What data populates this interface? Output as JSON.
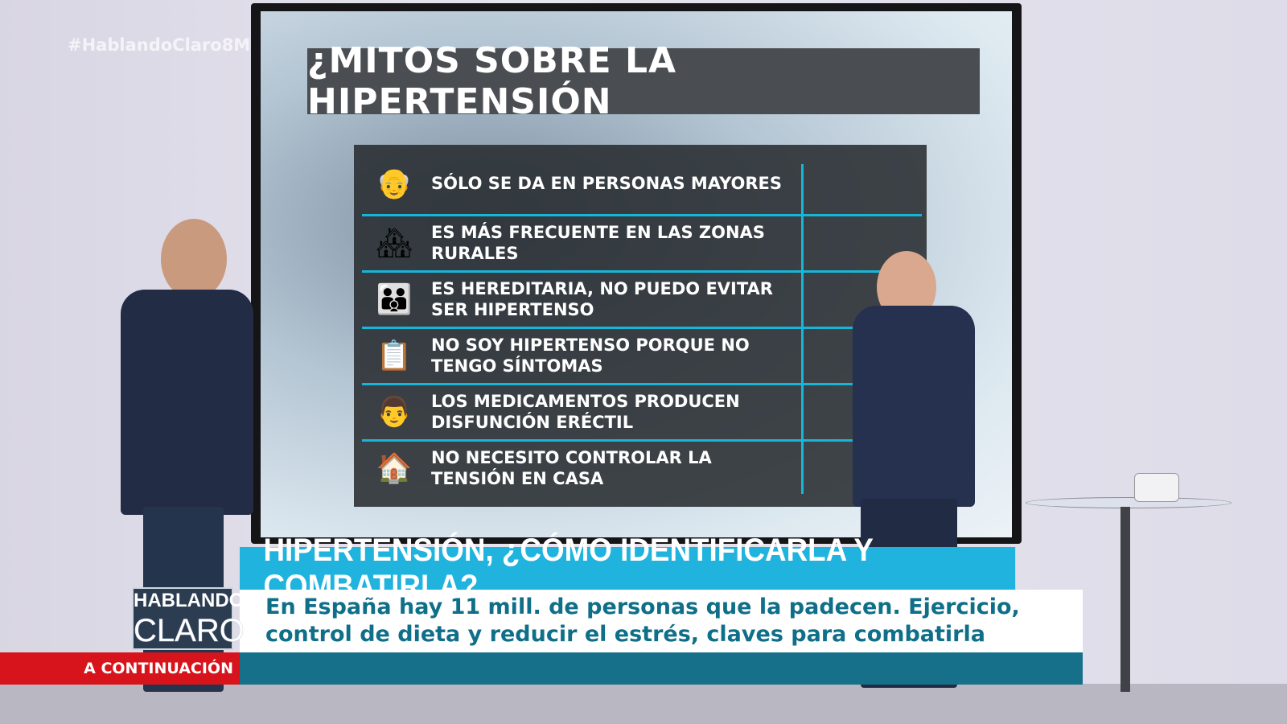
{
  "hashtag": "#HablandoClaro8M",
  "board": {
    "title": "¿MITOS SOBRE LA HIPERTENSIÓN",
    "myths": [
      {
        "icon": "elderly-person-icon",
        "text": "SÓLO SE DA EN PERSONAS MAYORES"
      },
      {
        "icon": "rural-village-icon",
        "text": "ES MÁS FRECUENTE EN LAS ZONAS RURALES"
      },
      {
        "icon": "heredity-family-icon",
        "text": "ES HEREDITARIA, NO PUEDO EVITAR SER HIPERTENSO"
      },
      {
        "icon": "clipboard-icon",
        "text": "NO SOY HIPERTENSO PORQUE NO TENGO SÍNTOMAS"
      },
      {
        "icon": "man-thinking-icon",
        "text": "LOS MEDICAMENTOS PRODUCEN DISFUNCIÓN ERÉCTIL"
      },
      {
        "icon": "house-icon",
        "text": "NO NECESITO CONTROLAR LA TENSIÓN EN CASA"
      }
    ]
  },
  "lower_third": {
    "headline": "HIPERTENSIÓN, ¿CÓMO IDENTIFICARLA Y COMBATIRLA?",
    "subtitle_line1": "En España hay 11 mill. de personas que la padecen. Ejercicio,",
    "subtitle_line2": "control de dieta y reducir el estrés, claves para combatirla",
    "next_label": "A CONTINUACIÓN",
    "logo_top": "HABLANDO",
    "logo_bottom": "CLARO"
  },
  "colors": {
    "accent_cyan": "#1fb3dd",
    "teal": "#16708a",
    "red": "#d7141b",
    "text_blue": "#0f6f89"
  }
}
